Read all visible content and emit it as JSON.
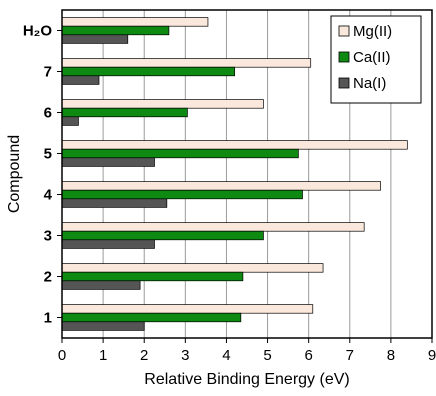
{
  "chart_data": {
    "type": "bar",
    "orientation": "horizontal",
    "categories": [
      "1",
      "2",
      "3",
      "4",
      "5",
      "6",
      "7",
      "H₂O"
    ],
    "series": [
      {
        "name": "Mg(II)",
        "color": "#fbe8dd",
        "values": [
          6.1,
          6.35,
          7.35,
          7.75,
          8.4,
          4.9,
          6.05,
          3.55
        ]
      },
      {
        "name": "Ca(II)",
        "color": "#0e8a12",
        "values": [
          4.35,
          4.4,
          4.9,
          5.85,
          5.75,
          3.05,
          4.2,
          2.6
        ]
      },
      {
        "name": "Na(I)",
        "color": "#555555",
        "values": [
          2.0,
          1.9,
          2.25,
          2.55,
          2.25,
          0.4,
          0.9,
          1.6
        ]
      }
    ],
    "xlabel": "Relative Binding Energy (eV)",
    "ylabel": "Compound",
    "xlim": [
      0,
      9
    ],
    "xticks": [
      "0",
      "1",
      "2",
      "3",
      "4",
      "5",
      "6",
      "7",
      "8",
      "9"
    ],
    "grid": "vertical",
    "legend_position": "top-right"
  }
}
